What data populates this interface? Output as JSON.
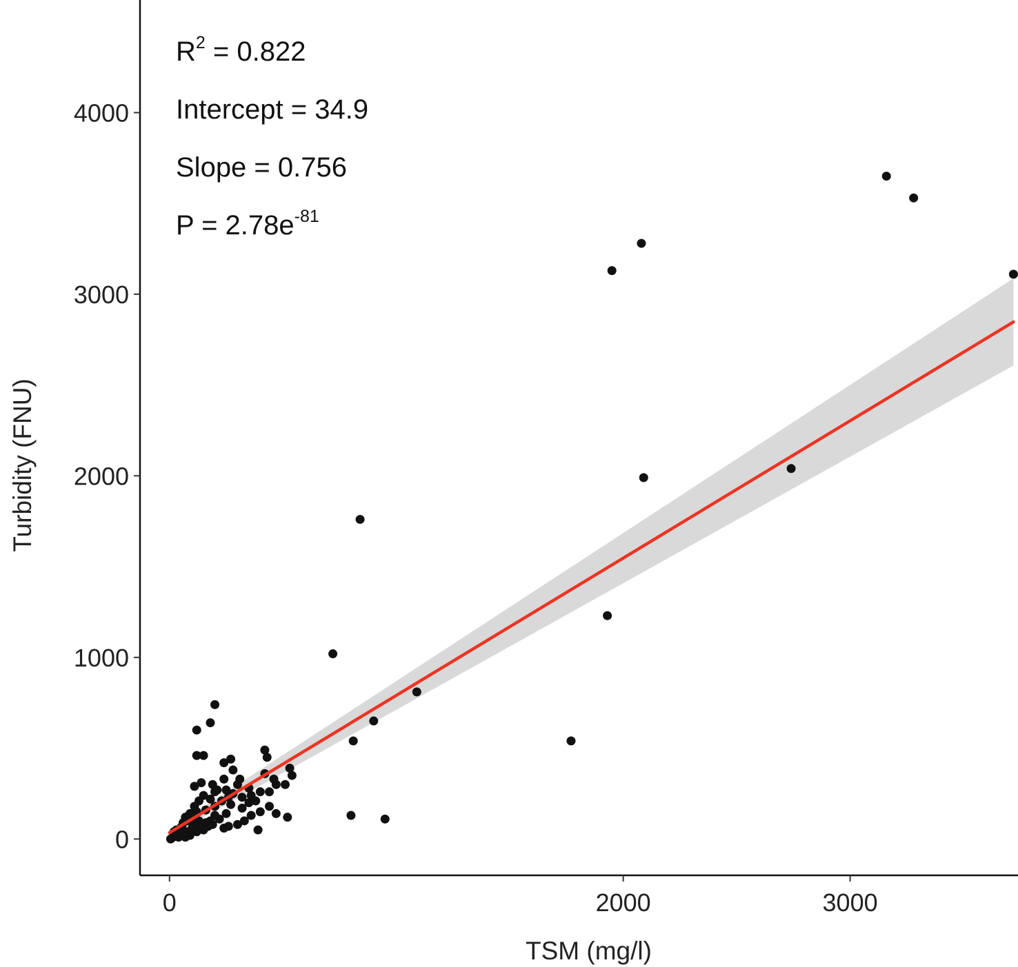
{
  "chart_data": {
    "type": "scatter",
    "xlabel": "TSM (mg/l)",
    "ylabel": "Turbidity (FNU)",
    "xlim": [
      -130,
      3740
    ],
    "ylim": [
      -200,
      4620
    ],
    "x_ticks": [
      0,
      2000,
      3000
    ],
    "x_tick_labels": [
      "0",
      "2000",
      "3000"
    ],
    "y_ticks": [
      0,
      1000,
      2000,
      3000,
      4000
    ],
    "y_tick_labels": [
      "0",
      "1000",
      "2000",
      "3000",
      "4000"
    ],
    "grid": false,
    "legend": "none",
    "annotations": [
      {
        "prefix": "R",
        "sup": "2",
        "suffix": " = 0.822"
      },
      {
        "prefix": "Intercept = 34.9",
        "sup": "",
        "suffix": ""
      },
      {
        "prefix": "Slope = 0.756",
        "sup": "",
        "suffix": ""
      },
      {
        "prefix": "P = 2.78e",
        "sup": "-81",
        "suffix": ""
      }
    ],
    "fit": {
      "intercept": 34.9,
      "slope": 0.756,
      "x_range": [
        0,
        3720
      ],
      "ci_half_width_at_x0": 20,
      "ci_half_width_at_xmax": 240,
      "line_color": "#ee3322",
      "band_color": "#d9d9d9"
    },
    "point_color": "#111111",
    "points": [
      [
        3720,
        3110
      ],
      [
        3160,
        3650
      ],
      [
        3280,
        3530
      ],
      [
        2080,
        3280
      ],
      [
        1950,
        3130
      ],
      [
        2090,
        1990
      ],
      [
        2740,
        2040
      ],
      [
        1930,
        1230
      ],
      [
        1770,
        540
      ],
      [
        1090,
        810
      ],
      [
        840,
        1760
      ],
      [
        720,
        1020
      ],
      [
        900,
        650
      ],
      [
        810,
        540
      ],
      [
        800,
        130
      ],
      [
        950,
        110
      ],
      [
        200,
        740
      ],
      [
        180,
        640
      ],
      [
        120,
        600
      ],
      [
        120,
        460
      ],
      [
        150,
        460
      ],
      [
        240,
        420
      ],
      [
        270,
        440
      ],
      [
        420,
        490
      ],
      [
        430,
        450
      ],
      [
        280,
        380
      ],
      [
        530,
        390
      ],
      [
        540,
        350
      ],
      [
        470,
        300
      ],
      [
        510,
        300
      ],
      [
        440,
        260
      ],
      [
        350,
        280
      ],
      [
        360,
        240
      ],
      [
        320,
        230
      ],
      [
        300,
        300
      ],
      [
        280,
        250
      ],
      [
        250,
        270
      ],
      [
        230,
        210
      ],
      [
        200,
        180
      ],
      [
        180,
        220
      ],
      [
        160,
        160
      ],
      [
        150,
        240
      ],
      [
        130,
        210
      ],
      [
        120,
        150
      ],
      [
        110,
        180
      ],
      [
        100,
        120
      ],
      [
        90,
        140
      ],
      [
        80,
        100
      ],
      [
        70,
        120
      ],
      [
        60,
        90
      ],
      [
        55,
        70
      ],
      [
        50,
        60
      ],
      [
        45,
        50
      ],
      [
        40,
        40
      ],
      [
        35,
        30
      ],
      [
        30,
        25
      ],
      [
        25,
        20
      ],
      [
        20,
        15
      ],
      [
        15,
        10
      ],
      [
        10,
        5
      ],
      [
        5,
        0
      ],
      [
        60,
        30
      ],
      [
        80,
        40
      ],
      [
        100,
        60
      ],
      [
        110,
        80
      ],
      [
        130,
        100
      ],
      [
        140,
        60
      ],
      [
        160,
        90
      ],
      [
        190,
        80
      ],
      [
        220,
        110
      ],
      [
        240,
        60
      ],
      [
        260,
        70
      ],
      [
        300,
        80
      ],
      [
        330,
        100
      ],
      [
        360,
        130
      ],
      [
        400,
        150
      ],
      [
        440,
        180
      ],
      [
        470,
        140
      ],
      [
        380,
        210
      ],
      [
        400,
        260
      ],
      [
        350,
        200
      ],
      [
        320,
        170
      ],
      [
        270,
        190
      ],
      [
        250,
        140
      ],
      [
        200,
        130
      ],
      [
        180,
        100
      ],
      [
        170,
        70
      ],
      [
        150,
        50
      ],
      [
        120,
        40
      ],
      [
        90,
        20
      ],
      [
        70,
        10
      ],
      [
        40,
        10
      ],
      [
        30,
        50
      ],
      [
        20,
        40
      ],
      [
        110,
        290
      ],
      [
        140,
        310
      ],
      [
        190,
        300
      ],
      [
        210,
        270
      ],
      [
        420,
        360
      ],
      [
        460,
        330
      ],
      [
        390,
        50
      ],
      [
        520,
        120
      ],
      [
        240,
        330
      ],
      [
        310,
        330
      ],
      [
        200,
        260
      ],
      [
        260,
        230
      ]
    ]
  }
}
